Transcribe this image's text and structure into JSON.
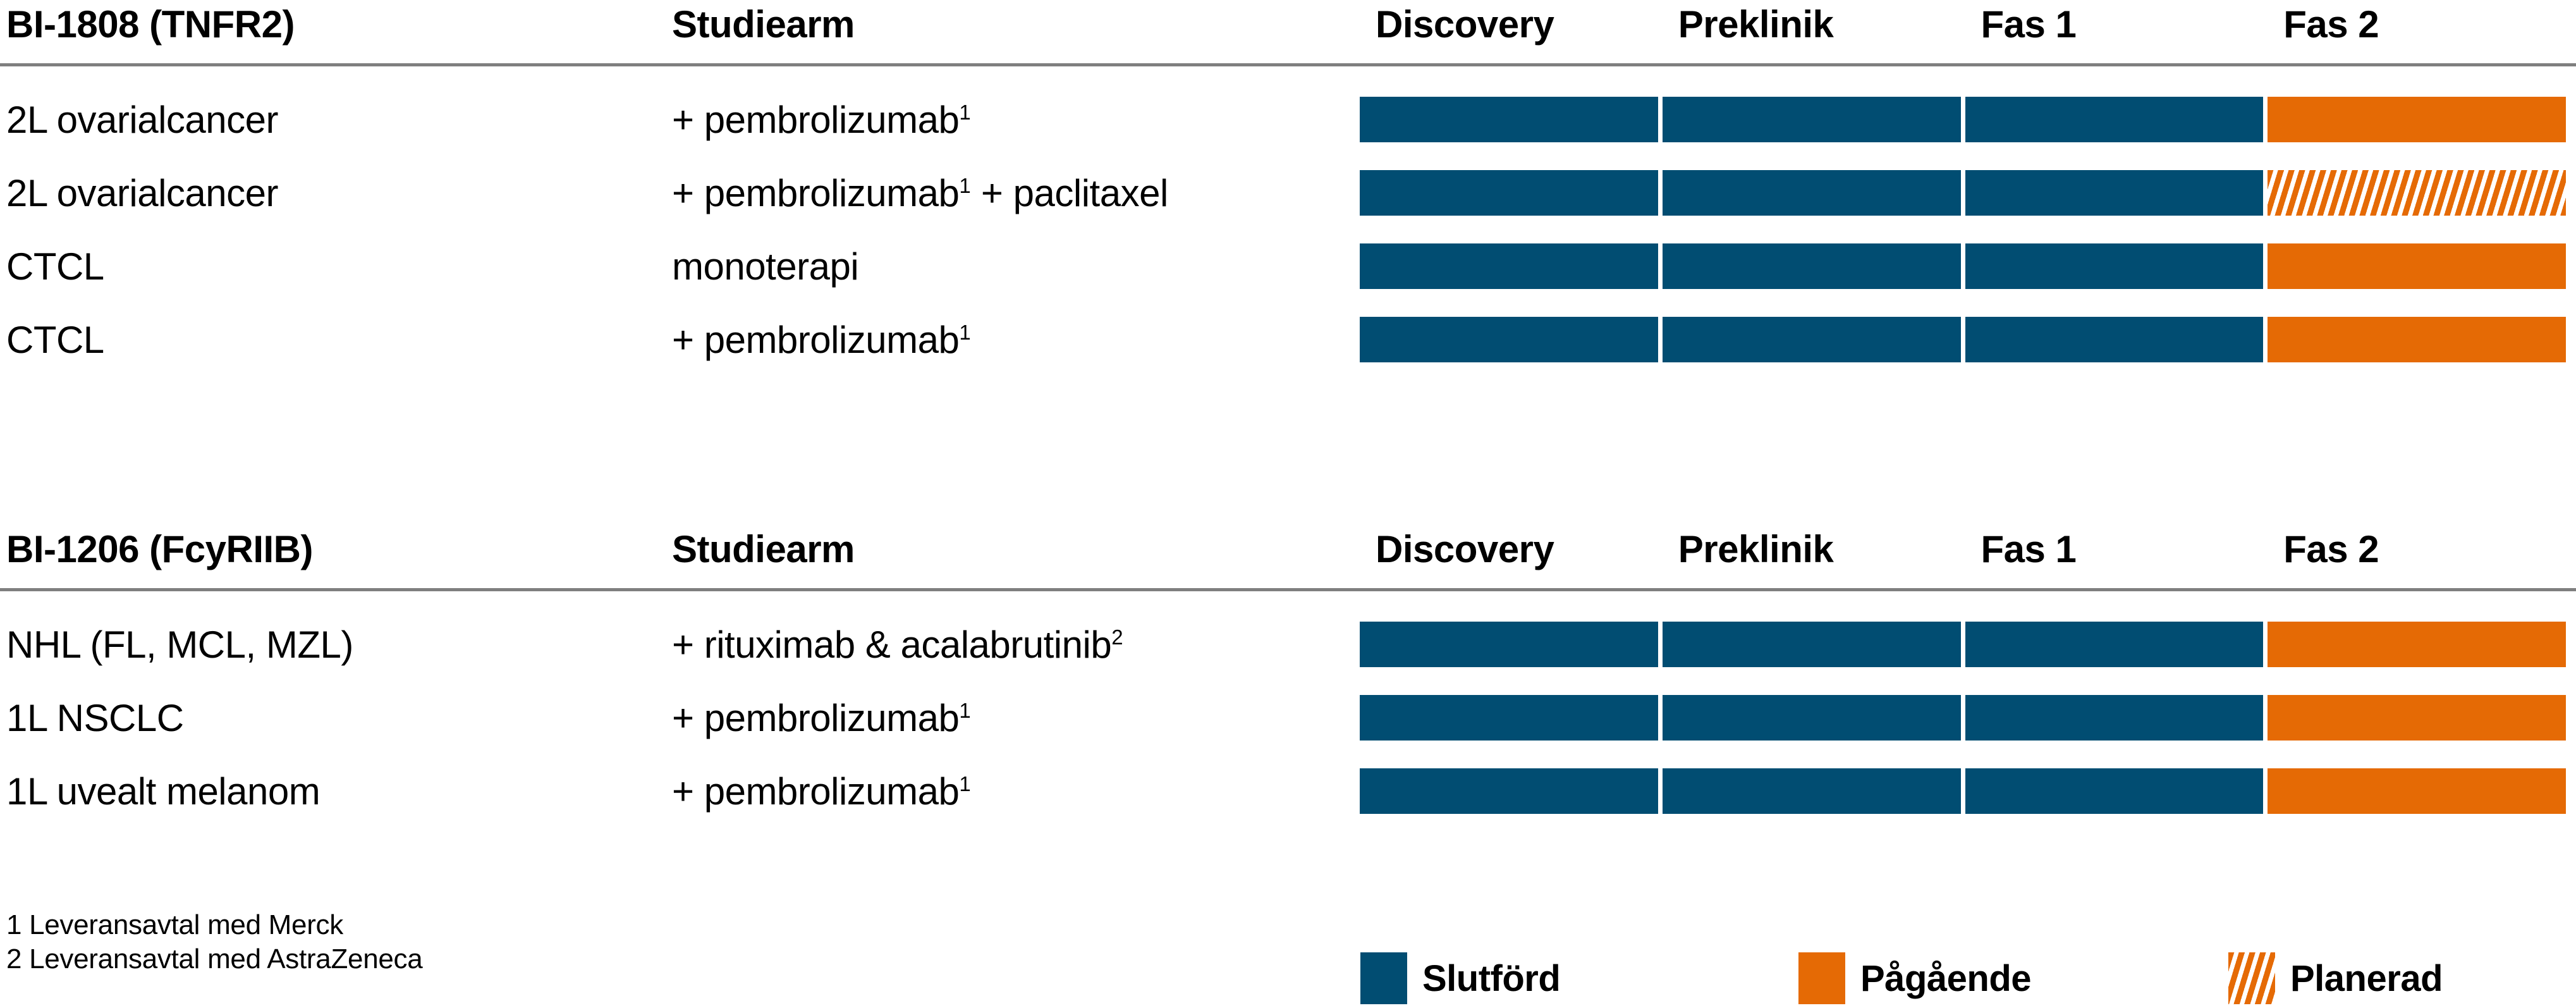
{
  "colors": {
    "completed": "#014D72",
    "ongoing": "#E56A05",
    "divider": "#7F7F7F",
    "text": "#000000",
    "background": "#FFFFFF"
  },
  "labels": {
    "study_arm_header": "Studiearm"
  },
  "chart_data": {
    "type": "table",
    "description": "Clinical development pipeline chart: per indication and study arm, phase segments marked completed (solid blue), ongoing (solid orange) or planned (hatched orange)",
    "phase_columns": [
      "Discovery",
      "Preklinik",
      "Fas 1",
      "Fas 2"
    ],
    "legend_position": "bottom",
    "sections": [
      {
        "program": "BI-1808 (TNFR2)",
        "rows": [
          {
            "indication": "2L ovarialcancer",
            "study_arm_parts": [
              {
                "t": "+ pembrolizumab"
              },
              {
                "sup": "1"
              }
            ],
            "statuses": [
              "completed",
              "completed",
              "completed",
              "ongoing"
            ]
          },
          {
            "indication": "2L ovarialcancer",
            "study_arm_parts": [
              {
                "t": "+ pembrolizumab"
              },
              {
                "sup": "1"
              },
              {
                "t": " + paclitaxel"
              }
            ],
            "statuses": [
              "completed",
              "completed",
              "completed",
              "planned"
            ]
          },
          {
            "indication": "CTCL",
            "study_arm_parts": [
              {
                "t": "monoterapi"
              }
            ],
            "statuses": [
              "completed",
              "completed",
              "completed",
              "ongoing"
            ]
          },
          {
            "indication": "CTCL",
            "study_arm_parts": [
              {
                "t": "+ pembrolizumab"
              },
              {
                "sup": "1"
              }
            ],
            "statuses": [
              "completed",
              "completed",
              "completed",
              "ongoing"
            ]
          }
        ]
      },
      {
        "program": "BI-1206 (FcyRIIB)",
        "rows": [
          {
            "indication": "NHL (FL, MCL, MZL)",
            "study_arm_parts": [
              {
                "t": "+ rituximab & acalabrutinib"
              },
              {
                "sup": "2"
              }
            ],
            "statuses": [
              "completed",
              "completed",
              "completed",
              "ongoing"
            ]
          },
          {
            "indication": "1L NSCLC",
            "study_arm_parts": [
              {
                "t": "+ pembrolizumab"
              },
              {
                "sup": "1"
              }
            ],
            "statuses": [
              "completed",
              "completed",
              "completed",
              "ongoing"
            ]
          },
          {
            "indication": "1L uvealt melanom",
            "study_arm_parts": [
              {
                "t": "+ pembrolizumab"
              },
              {
                "sup": "1"
              }
            ],
            "statuses": [
              "completed",
              "completed",
              "completed",
              "ongoing"
            ]
          }
        ]
      }
    ],
    "legend": [
      {
        "label": "Slutförd",
        "status": "completed"
      },
      {
        "label": "Pågående",
        "status": "ongoing"
      },
      {
        "label": "Planerad",
        "status": "planned"
      }
    ],
    "legend_x_offsets": [
      2152,
      2845,
      3525
    ],
    "footnotes": [
      "1 Leveransavtal med Merck",
      "2 Leveransavtal med AstraZeneca"
    ]
  }
}
